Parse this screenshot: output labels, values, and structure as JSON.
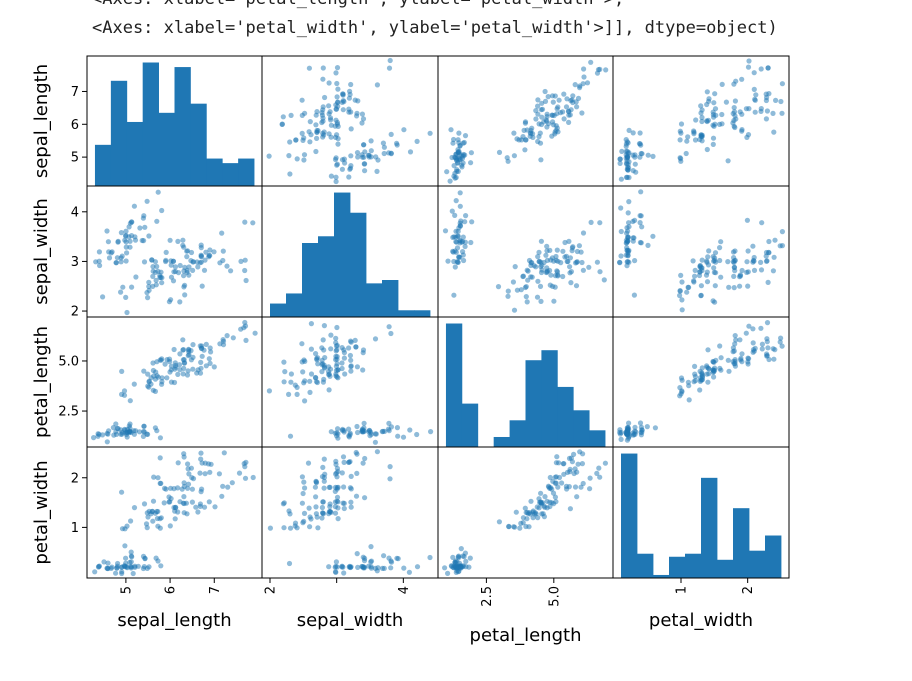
{
  "output": {
    "line1": "<Axes: xlabel='petal_length', ylabel='petal_width'>,",
    "line2": "<Axes: xlabel='petal_width', ylabel='petal_width'>]], dtype=object)"
  },
  "colors": {
    "accent": "#1f77b4",
    "point_alpha": 0.5
  },
  "chart_data": {
    "type": "scatter_matrix",
    "variables": [
      "sepal_length",
      "sepal_width",
      "petal_length",
      "petal_width"
    ],
    "ranges": {
      "sepal_length": [
        4.3,
        7.9
      ],
      "sepal_width": [
        2.0,
        4.4
      ],
      "petal_length": [
        1.0,
        6.9
      ],
      "petal_width": [
        0.1,
        2.5
      ]
    },
    "ticks": {
      "sepal_length": [
        5,
        6,
        7
      ],
      "sepal_width": [
        2,
        3,
        4
      ],
      "petal_length": [
        2.5,
        5.0
      ],
      "petal_width": [
        1,
        2
      ]
    },
    "tick_labels": {
      "sepal_length": [
        "5",
        "6",
        "7"
      ],
      "sepal_width": [
        "2",
        "3",
        "4"
      ],
      "petal_length": [
        "2.5",
        "5.0"
      ],
      "petal_width": [
        "1",
        "2"
      ]
    },
    "x_tick_labels": {
      "sepal_length": [
        "5",
        "6",
        "7"
      ],
      "sepal_width": [
        "2",
        "4"
      ],
      "petal_length": [
        "2.5",
        "5.0"
      ],
      "petal_width": [
        "1",
        "2"
      ]
    },
    "histograms": {
      "sepal_length": [
        9,
        23,
        14,
        27,
        16,
        26,
        18,
        6,
        5,
        6
      ],
      "sepal_width": [
        4,
        7,
        22,
        24,
        37,
        31,
        10,
        11,
        2,
        2
      ],
      "petal_length": [
        37,
        13,
        0,
        3,
        8,
        26,
        29,
        18,
        11,
        5
      ],
      "petal_width": [
        41,
        8,
        1,
        7,
        8,
        33,
        6,
        23,
        9,
        14
      ]
    },
    "samples": {
      "sepal_length": [
        5.1,
        4.9,
        4.7,
        4.6,
        5.0,
        5.4,
        4.6,
        5.0,
        4.4,
        4.9,
        5.4,
        4.8,
        4.8,
        4.3,
        5.8,
        5.7,
        5.4,
        5.1,
        5.7,
        5.1,
        5.4,
        5.1,
        4.6,
        5.1,
        4.8,
        5.0,
        5.0,
        5.2,
        5.2,
        4.7,
        4.8,
        5.4,
        5.2,
        5.5,
        4.9,
        5.0,
        5.5,
        4.9,
        4.4,
        5.1,
        5.0,
        4.5,
        4.4,
        5.0,
        5.1,
        4.8,
        5.1,
        4.6,
        5.3,
        5.0,
        7.0,
        6.4,
        6.9,
        5.5,
        6.5,
        5.7,
        6.3,
        4.9,
        6.6,
        5.2,
        5.0,
        5.9,
        6.0,
        6.1,
        5.6,
        6.7,
        5.6,
        5.8,
        6.2,
        5.6,
        5.9,
        6.1,
        6.3,
        6.1,
        6.4,
        6.6,
        6.8,
        6.7,
        6.0,
        5.7,
        5.5,
        5.5,
        5.8,
        6.0,
        5.4,
        6.0,
        6.7,
        6.3,
        5.6,
        5.5,
        5.5,
        6.1,
        5.8,
        5.0,
        5.6,
        5.7,
        5.7,
        6.2,
        5.1,
        5.7,
        6.3,
        5.8,
        7.1,
        6.3,
        6.5,
        7.6,
        4.9,
        7.3,
        6.7,
        7.2,
        6.5,
        6.4,
        6.8,
        5.7,
        5.8,
        6.4,
        6.5,
        7.7,
        7.7,
        6.0,
        6.9,
        5.6,
        7.7,
        6.3,
        6.7,
        7.2,
        6.2,
        6.1,
        6.4,
        7.2,
        7.4,
        7.9,
        6.4,
        6.3,
        6.1,
        7.7,
        6.3,
        6.4,
        6.0,
        6.9,
        6.7,
        6.9,
        5.8,
        6.8,
        6.7,
        6.7,
        6.3,
        6.5,
        6.2,
        5.9
      ],
      "sepal_width": [
        3.5,
        3.0,
        3.2,
        3.1,
        3.6,
        3.9,
        3.4,
        3.4,
        2.9,
        3.1,
        3.7,
        3.4,
        3.0,
        3.0,
        4.0,
        4.4,
        3.9,
        3.5,
        3.8,
        3.8,
        3.4,
        3.7,
        3.6,
        3.3,
        3.4,
        3.0,
        3.4,
        3.5,
        3.4,
        3.2,
        3.1,
        3.4,
        4.1,
        4.2,
        3.1,
        3.2,
        3.5,
        3.6,
        3.0,
        3.4,
        3.5,
        2.3,
        3.2,
        3.5,
        3.8,
        3.0,
        3.8,
        3.2,
        3.7,
        3.3,
        3.2,
        3.2,
        3.1,
        2.3,
        2.8,
        2.8,
        3.3,
        2.4,
        2.9,
        2.7,
        2.0,
        3.0,
        2.2,
        2.9,
        2.9,
        3.1,
        3.0,
        2.7,
        2.2,
        2.5,
        3.2,
        2.8,
        2.5,
        2.8,
        2.9,
        3.0,
        2.8,
        3.0,
        2.9,
        2.6,
        2.4,
        2.4,
        2.7,
        2.7,
        3.0,
        3.4,
        3.1,
        2.3,
        3.0,
        2.5,
        2.6,
        3.0,
        2.6,
        2.3,
        2.7,
        3.0,
        2.9,
        2.9,
        2.5,
        2.8,
        3.3,
        2.7,
        3.0,
        2.9,
        3.0,
        3.0,
        2.5,
        2.9,
        2.5,
        3.6,
        3.2,
        2.7,
        3.0,
        2.5,
        2.8,
        3.2,
        3.0,
        3.8,
        2.6,
        2.2,
        3.2,
        2.8,
        2.8,
        2.7,
        3.3,
        3.2,
        2.8,
        3.0,
        2.8,
        3.0,
        2.8,
        3.8,
        2.8,
        2.8,
        2.6,
        3.0,
        3.4,
        3.1,
        3.0,
        3.1,
        3.1,
        3.1,
        2.7,
        3.2,
        3.3,
        3.0,
        2.5,
        3.0,
        3.4,
        3.0
      ],
      "petal_length": [
        1.4,
        1.4,
        1.3,
        1.5,
        1.4,
        1.7,
        1.4,
        1.5,
        1.4,
        1.5,
        1.5,
        1.6,
        1.4,
        1.1,
        1.2,
        1.5,
        1.3,
        1.4,
        1.7,
        1.5,
        1.7,
        1.5,
        1.0,
        1.7,
        1.9,
        1.6,
        1.6,
        1.5,
        1.4,
        1.6,
        1.6,
        1.5,
        1.5,
        1.4,
        1.5,
        1.2,
        1.3,
        1.4,
        1.3,
        1.5,
        1.3,
        1.3,
        1.3,
        1.6,
        1.9,
        1.4,
        1.6,
        1.4,
        1.5,
        1.4,
        4.7,
        4.5,
        4.9,
        4.0,
        4.6,
        4.5,
        4.7,
        3.3,
        4.6,
        3.9,
        3.5,
        4.2,
        4.0,
        4.7,
        3.6,
        4.4,
        4.5,
        4.1,
        4.5,
        3.9,
        4.8,
        4.0,
        4.9,
        4.7,
        4.3,
        4.4,
        4.8,
        5.0,
        4.5,
        3.5,
        3.8,
        3.7,
        3.9,
        5.1,
        4.5,
        4.5,
        4.7,
        4.4,
        4.1,
        4.0,
        4.4,
        4.6,
        4.0,
        3.3,
        4.2,
        4.2,
        4.2,
        4.3,
        3.0,
        4.1,
        6.0,
        5.1,
        5.9,
        5.6,
        5.8,
        6.6,
        4.5,
        6.3,
        5.8,
        6.1,
        5.1,
        5.3,
        5.5,
        5.0,
        5.1,
        5.3,
        5.5,
        6.7,
        6.9,
        5.0,
        5.7,
        4.9,
        6.7,
        4.9,
        5.7,
        6.0,
        4.8,
        4.9,
        5.6,
        5.8,
        6.1,
        6.4,
        5.6,
        5.1,
        5.6,
        6.1,
        5.6,
        5.5,
        4.8,
        5.4,
        5.6,
        5.1,
        5.1,
        5.9,
        5.7,
        5.2,
        5.0,
        5.2,
        5.4,
        5.1
      ],
      "petal_width": [
        0.2,
        0.2,
        0.2,
        0.2,
        0.2,
        0.4,
        0.3,
        0.2,
        0.2,
        0.1,
        0.2,
        0.2,
        0.1,
        0.1,
        0.2,
        0.4,
        0.4,
        0.3,
        0.3,
        0.3,
        0.2,
        0.4,
        0.2,
        0.5,
        0.2,
        0.2,
        0.4,
        0.2,
        0.2,
        0.2,
        0.2,
        0.4,
        0.1,
        0.2,
        0.2,
        0.2,
        0.2,
        0.1,
        0.2,
        0.2,
        0.3,
        0.3,
        0.2,
        0.6,
        0.4,
        0.3,
        0.2,
        0.2,
        0.2,
        0.2,
        1.4,
        1.5,
        1.5,
        1.3,
        1.5,
        1.3,
        1.6,
        1.0,
        1.3,
        1.4,
        1.0,
        1.5,
        1.0,
        1.4,
        1.3,
        1.4,
        1.5,
        1.0,
        1.5,
        1.1,
        1.8,
        1.3,
        1.5,
        1.2,
        1.3,
        1.4,
        1.4,
        1.7,
        1.5,
        1.0,
        1.1,
        1.0,
        1.2,
        1.6,
        1.5,
        1.6,
        1.5,
        1.3,
        1.3,
        1.3,
        1.2,
        1.4,
        1.2,
        1.0,
        1.3,
        1.2,
        1.3,
        1.3,
        1.1,
        1.3,
        2.5,
        1.9,
        2.1,
        1.8,
        2.2,
        2.1,
        1.7,
        1.8,
        1.8,
        2.5,
        2.0,
        1.9,
        2.1,
        2.0,
        2.4,
        2.3,
        1.8,
        2.2,
        2.3,
        1.5,
        2.3,
        2.0,
        2.0,
        1.8,
        2.1,
        1.8,
        1.8,
        1.8,
        2.1,
        1.6,
        1.9,
        2.0,
        2.2,
        1.5,
        1.4,
        2.3,
        2.4,
        1.8,
        1.8,
        2.1,
        2.4,
        2.3,
        1.9,
        2.3,
        2.5,
        2.3,
        1.9,
        2.0,
        2.3,
        1.8
      ]
    }
  }
}
